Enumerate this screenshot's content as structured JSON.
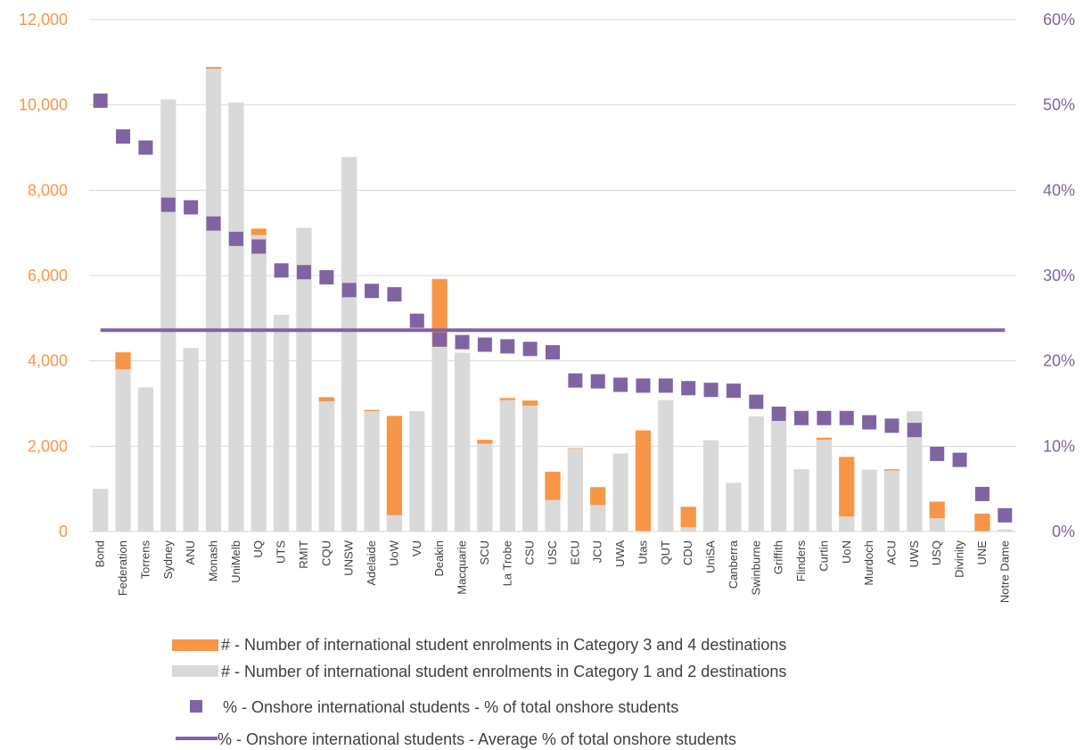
{
  "chart_data": {
    "type": "bar",
    "stacked": true,
    "categories": [
      "Bond",
      "Federation",
      "Torrens",
      "Sydney",
      "ANU",
      "Monash",
      "UniMelb",
      "UQ",
      "UTS",
      "RMIT",
      "CQU",
      "UNSW",
      "Adelaide",
      "UoW",
      "VU",
      "Deakin",
      "Macquarie",
      "SCU",
      "La Trobe",
      "CSU",
      "USC",
      "ECU",
      "JCU",
      "UWA",
      "Utas",
      "QUT",
      "CDU",
      "UniSA",
      "Canberra",
      "Swinburne",
      "Griffith",
      "Flinders",
      "Curtin",
      "UoN",
      "Murdoch",
      "ACU",
      "UWS",
      "USQ",
      "Divinity",
      "UNE",
      "Notre Dame"
    ],
    "y_left": {
      "ylim": [
        0,
        12000
      ],
      "ticks": [
        "0",
        "2,000",
        "4,000",
        "6,000",
        "8,000",
        "10,000",
        "12,000"
      ],
      "tick_values": [
        0,
        2000,
        4000,
        6000,
        8000,
        10000,
        12000
      ]
    },
    "y_right": {
      "ylim": [
        0,
        0.6
      ],
      "ticks": [
        "0%",
        "10%",
        "20%",
        "30%",
        "40%",
        "50%",
        "60%"
      ],
      "tick_values": [
        0,
        0.1,
        0.2,
        0.3,
        0.4,
        0.5,
        0.6
      ]
    },
    "series": [
      {
        "name": "# - Number of international student enrolments in Category 1 and 2 destinations",
        "type": "bar",
        "axis": "left",
        "color": "#D9D9D9",
        "values": [
          1000,
          3800,
          3380,
          10130,
          4300,
          10850,
          10060,
          6950,
          5080,
          7120,
          3050,
          8780,
          2820,
          380,
          2820,
          4330,
          4190,
          2060,
          3080,
          2950,
          740,
          1950,
          620,
          1830,
          0,
          3080,
          100,
          2140,
          1140,
          2700,
          2610,
          1460,
          2150,
          350,
          1450,
          1430,
          2820,
          310,
          0,
          0,
          50
        ]
      },
      {
        "name": "# - Number of international student enrolments in Category 3 and 4 destinations",
        "type": "bar",
        "axis": "left",
        "color": "#F79646",
        "values": [
          0,
          400,
          0,
          0,
          0,
          40,
          0,
          150,
          0,
          0,
          100,
          0,
          30,
          2330,
          0,
          1590,
          0,
          90,
          50,
          120,
          660,
          10,
          420,
          0,
          2370,
          0,
          480,
          0,
          0,
          0,
          0,
          0,
          50,
          1400,
          0,
          30,
          0,
          390,
          0,
          420,
          0
        ]
      },
      {
        "name": "% - Onshore international students - % of total onshore students",
        "type": "scatter",
        "axis": "right",
        "color": "#8064A2",
        "values": [
          0.505,
          0.463,
          0.45,
          0.383,
          0.38,
          0.361,
          0.343,
          0.334,
          0.306,
          0.304,
          0.298,
          0.283,
          0.282,
          0.278,
          0.247,
          0.225,
          0.222,
          0.219,
          0.217,
          0.214,
          0.21,
          0.177,
          0.176,
          0.172,
          0.171,
          0.171,
          0.168,
          0.166,
          0.165,
          0.152,
          0.138,
          0.133,
          0.133,
          0.133,
          0.128,
          0.124,
          0.119,
          0.091,
          0.084,
          0.044,
          0.019
        ]
      },
      {
        "name": "% - Onshore international students - Average % of total onshore students",
        "type": "line",
        "axis": "right",
        "color": "#8064A2",
        "value": 0.236
      }
    ],
    "legend_position": "bottom",
    "grid": true
  }
}
